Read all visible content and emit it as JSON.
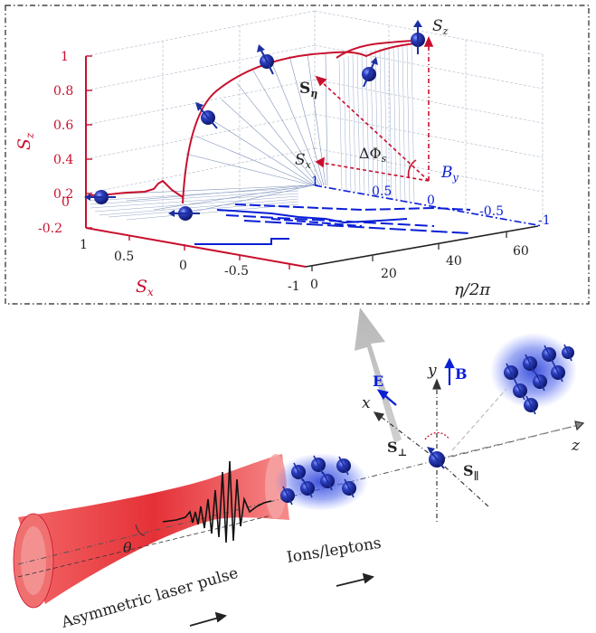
{
  "inset": {
    "z_axis": {
      "label": "S",
      "sub": "z",
      "ticks": [
        "1",
        "0.8",
        "0.6",
        "0.4",
        "0.2",
        "0",
        "-0.2"
      ]
    },
    "x_axis": {
      "label": "S",
      "sub": "x",
      "ticks": [
        "1",
        "0.5",
        "0",
        "-0.5",
        "-1"
      ]
    },
    "eta_axis": {
      "label": "η/2π",
      "ticks": [
        "0",
        "20",
        "40",
        "60"
      ]
    },
    "by_axis": {
      "label": "B",
      "sub": "y",
      "ticks": [
        "1",
        "0.5",
        "0",
        "-0.5",
        "-1"
      ]
    },
    "vectors": {
      "s_eta": {
        "label": "S",
        "sub": "η"
      },
      "s_x": {
        "label": "S",
        "sub": "x"
      },
      "s_z": {
        "label": "S",
        "sub": "z"
      },
      "delta_phi": {
        "label": "ΔΦ",
        "sub": "s"
      }
    }
  },
  "scene": {
    "axes": {
      "x": "x",
      "y": "y",
      "z": "z"
    },
    "field_E": "E",
    "field_B": "B",
    "s_perp": {
      "label": "S",
      "sub": "⊥"
    },
    "s_par": {
      "label": "S",
      "sub": "∥"
    },
    "theta": "θ",
    "laser_label": "Asymmetric laser pulse",
    "particles_label": "Ions/leptons"
  },
  "colors": {
    "red": "#c8102e",
    "blue": "#0b1fd6",
    "sphere": "#1b2fa0",
    "grid": "#8a9bb5"
  }
}
